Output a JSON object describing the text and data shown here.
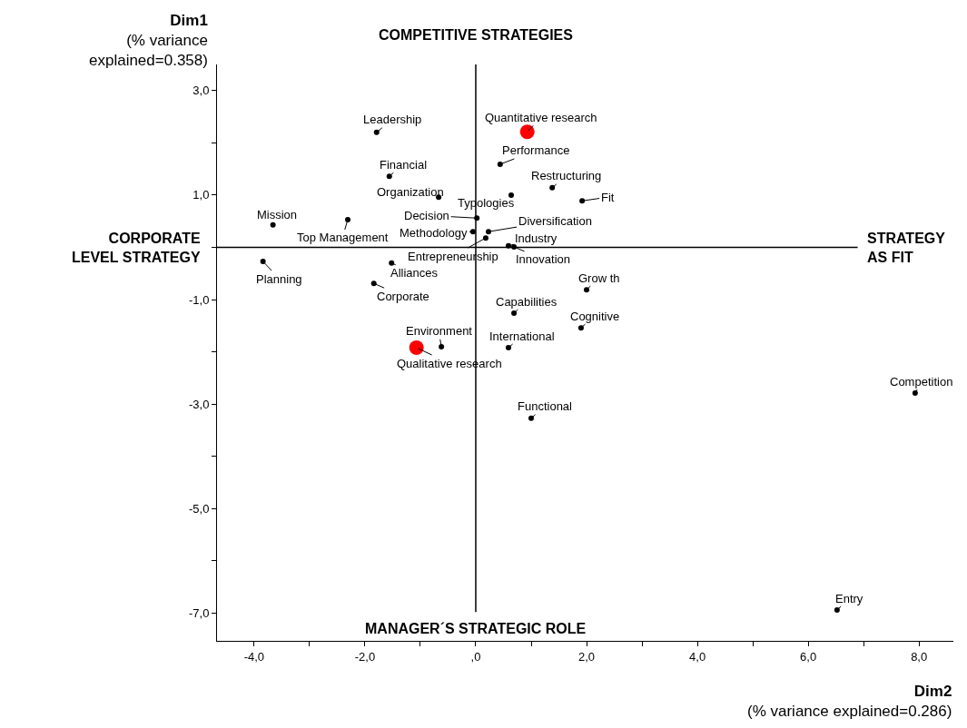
{
  "chart_data": {
    "type": "scatter",
    "xlabel": "Dim2\n(% variance explained=0.286)",
    "ylabel": "Dim1\n(% variance\nexplained=0.358)",
    "xlim": [
      -4.67,
      8.62
    ],
    "xticks": [
      {
        "value": -4,
        "label": "-4,0"
      },
      {
        "value": -3,
        "label": null
      },
      {
        "value": -2,
        "label": "-2,0"
      },
      {
        "value": -1,
        "label": null
      },
      {
        "value": 0,
        "label": ",0"
      },
      {
        "value": 1,
        "label": null
      },
      {
        "value": 2,
        "label": "2,0"
      },
      {
        "value": 3,
        "label": null
      },
      {
        "value": 4,
        "label": "4,0"
      },
      {
        "value": 5,
        "label": null
      },
      {
        "value": 6,
        "label": "6,0"
      },
      {
        "value": 7,
        "label": null
      },
      {
        "value": 8,
        "label": "8,0"
      }
    ],
    "ylim": [
      -7.53,
      3.5
    ],
    "yticks": [
      {
        "value": 3,
        "label": "3,0"
      },
      {
        "value": 2,
        "label": null
      },
      {
        "value": 1,
        "label": "1,0"
      },
      {
        "value": 0,
        "label": null
      },
      {
        "value": -1,
        "label": "-1,0"
      },
      {
        "value": -2,
        "label": null
      },
      {
        "value": -3,
        "label": "-3,0"
      },
      {
        "value": -4,
        "label": null
      },
      {
        "value": -5,
        "label": "-5,0"
      },
      {
        "value": -6,
        "label": null
      },
      {
        "value": -7,
        "label": "-7,0"
      }
    ],
    "grid": false,
    "marker": "circle",
    "ref_lines": [
      {
        "axis": "x",
        "value": 0,
        "color": "#000000"
      },
      {
        "axis": "y",
        "value": 0,
        "color": "#000000"
      }
    ],
    "series": [
      {
        "color": "#000000",
        "x": [
          -1.79,
          0.44,
          -1.56,
          1.38,
          -0.67,
          0.64,
          1.92,
          -3.66,
          -2.31,
          0.02,
          -0.05,
          0.23,
          0.18,
          0.59,
          0.69,
          -3.84,
          -1.52,
          -1.84,
          2.0,
          0.69,
          1.9,
          -0.62,
          0.59,
          7.93,
          1.0,
          6.52
        ],
        "values": [
          2.2,
          1.59,
          1.36,
          1.14,
          0.96,
          1.0,
          0.89,
          0.43,
          0.53,
          0.56,
          0.3,
          0.3,
          0.18,
          0.03,
          0.01,
          -0.27,
          -0.3,
          -0.69,
          -0.81,
          -1.26,
          -1.54,
          -1.9,
          -1.92,
          -2.79,
          -3.27,
          -6.94
        ]
      },
      {
        "color": "#ff0000",
        "x": [
          0.93,
          -1.07
        ],
        "values": [
          2.21,
          -1.92
        ]
      }
    ],
    "annotations": [
      "COMPETITIVE STRATEGIES",
      "CORPORATE\nLEVEL STRATEGY",
      "STRATEGY\nAS FIT",
      "MANAGER´S STRATEGIC ROLE",
      {
        "text": "Leadership",
        "x": -1.79,
        "y": 2.2
      },
      {
        "text": "Quantitative research",
        "x": 0.93,
        "y": 2.21
      },
      {
        "text": "Performance",
        "x": 0.44,
        "y": 1.59
      },
      {
        "text": "Financial",
        "x": -1.56,
        "y": 1.36
      },
      {
        "text": "Restructuring",
        "x": 1.38,
        "y": 1.14
      },
      {
        "text": "Organization",
        "x": -0.67,
        "y": 0.96
      },
      {
        "text": "Typologies",
        "x": 0.64,
        "y": 1.0
      },
      {
        "text": "Fit",
        "x": 1.92,
        "y": 0.89
      },
      {
        "text": "Mission",
        "x": -3.66,
        "y": 0.43
      },
      {
        "text": "Top Management",
        "x": -2.31,
        "y": 0.53
      },
      {
        "text": "Decision",
        "x": 0.02,
        "y": 0.56
      },
      {
        "text": "Methodology",
        "x": -0.05,
        "y": 0.3
      },
      {
        "text": "Diversification",
        "x": 0.23,
        "y": 0.3
      },
      {
        "text": "Entrepreneurship",
        "x": 0.18,
        "y": 0.18
      },
      {
        "text": "Industry",
        "x": 0.59,
        "y": 0.03
      },
      {
        "text": "Innovation",
        "x": 0.69,
        "y": 0.01
      },
      {
        "text": "Planning",
        "x": -3.84,
        "y": -0.27
      },
      {
        "text": "Alliances",
        "x": -1.52,
        "y": -0.3
      },
      {
        "text": "Corporate",
        "x": -1.84,
        "y": -0.69
      },
      {
        "text": "Grow th",
        "x": 2.0,
        "y": -0.81
      },
      {
        "text": "Capabilities",
        "x": 0.69,
        "y": -1.26
      },
      {
        "text": "Cognitive",
        "x": 1.9,
        "y": -1.54
      },
      {
        "text": "Environment",
        "x": -0.62,
        "y": -1.9
      },
      {
        "text": "Qualitative research",
        "x": -1.07,
        "y": -1.92
      },
      {
        "text": "International",
        "x": 0.59,
        "y": -1.92
      },
      {
        "text": "Competition",
        "x": 7.93,
        "y": -2.79
      },
      {
        "text": "Functional",
        "x": 1.0,
        "y": -3.27
      },
      {
        "text": "Entry",
        "x": 6.52,
        "y": -6.94
      }
    ]
  }
}
